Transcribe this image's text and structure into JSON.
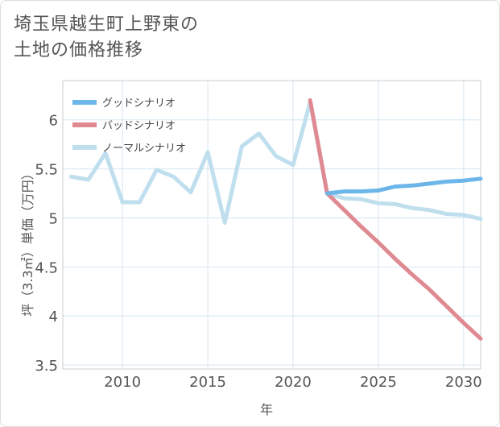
{
  "title": {
    "line1": "埼玉県越生町上野東の",
    "line2": "土地の価格推移"
  },
  "chart_data": {
    "type": "line",
    "xlabel": "年",
    "ylabel": "坪（3.3㎡）単価（万円）",
    "xlim": [
      2006.5,
      2031
    ],
    "ylim": [
      3.46,
      6.4
    ],
    "xticks": [
      2010,
      2015,
      2020,
      2025,
      2030
    ],
    "yticks": [
      3.5,
      4,
      4.5,
      5,
      5.5,
      6
    ],
    "ytick_labels": [
      "3.5",
      "4",
      "4.5",
      "5",
      "5.5",
      "6"
    ],
    "legend_position": "top-left",
    "series": [
      {
        "name": "グッドシナリオ",
        "color": "#6cb6ea",
        "x": [
          2022,
          2023,
          2024,
          2025,
          2026,
          2027,
          2028,
          2029,
          2030,
          2031
        ],
        "y": [
          5.25,
          5.27,
          5.27,
          5.28,
          5.32,
          5.33,
          5.35,
          5.37,
          5.38,
          5.4
        ]
      },
      {
        "name": "バッドシナリオ",
        "color": "#df8a92",
        "x": [
          2021,
          2022,
          2023,
          2024,
          2025,
          2026,
          2027,
          2028,
          2029,
          2030,
          2031
        ],
        "y": [
          6.2,
          5.25,
          5.08,
          4.91,
          4.75,
          4.58,
          4.42,
          4.27,
          4.1,
          3.93,
          3.77
        ]
      },
      {
        "name": "ノーマルシナリオ",
        "color": "#bfdfee",
        "x": [
          2007,
          2008,
          2009,
          2010,
          2011,
          2012,
          2013,
          2014,
          2015,
          2016,
          2017,
          2018,
          2019,
          2020,
          2021,
          2022,
          2023,
          2024,
          2025,
          2026,
          2027,
          2028,
          2029,
          2030,
          2031
        ],
        "y": [
          5.42,
          5.39,
          5.66,
          5.16,
          5.16,
          5.49,
          5.42,
          5.26,
          5.67,
          4.95,
          5.73,
          5.86,
          5.63,
          5.54,
          6.18,
          5.25,
          5.2,
          5.19,
          5.15,
          5.14,
          5.1,
          5.08,
          5.04,
          5.03,
          4.99
        ]
      }
    ]
  }
}
